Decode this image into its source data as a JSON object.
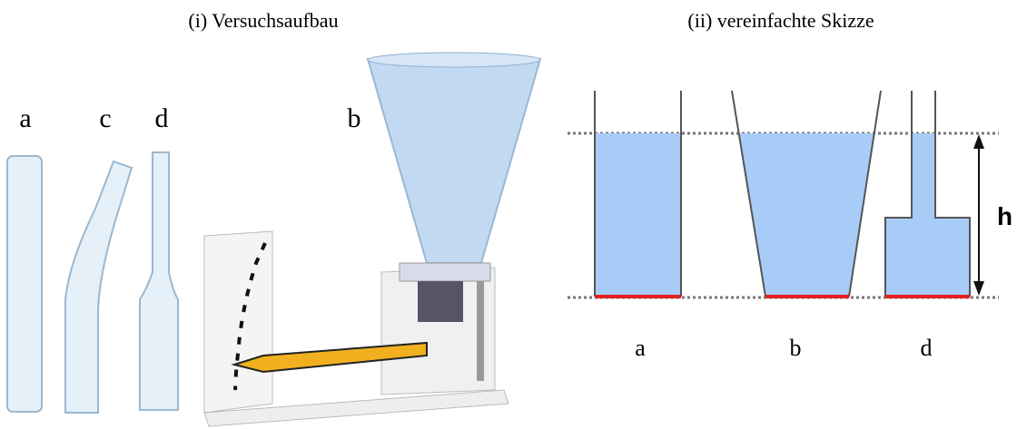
{
  "panels": [
    {
      "caption": "(i) Versuchsaufbau",
      "labels": [
        "a",
        "c",
        "d",
        "b"
      ]
    },
    {
      "caption": "(ii) vereinfachte Skizze",
      "labels": [
        "a",
        "b",
        "d"
      ],
      "height_label": "h"
    }
  ]
}
